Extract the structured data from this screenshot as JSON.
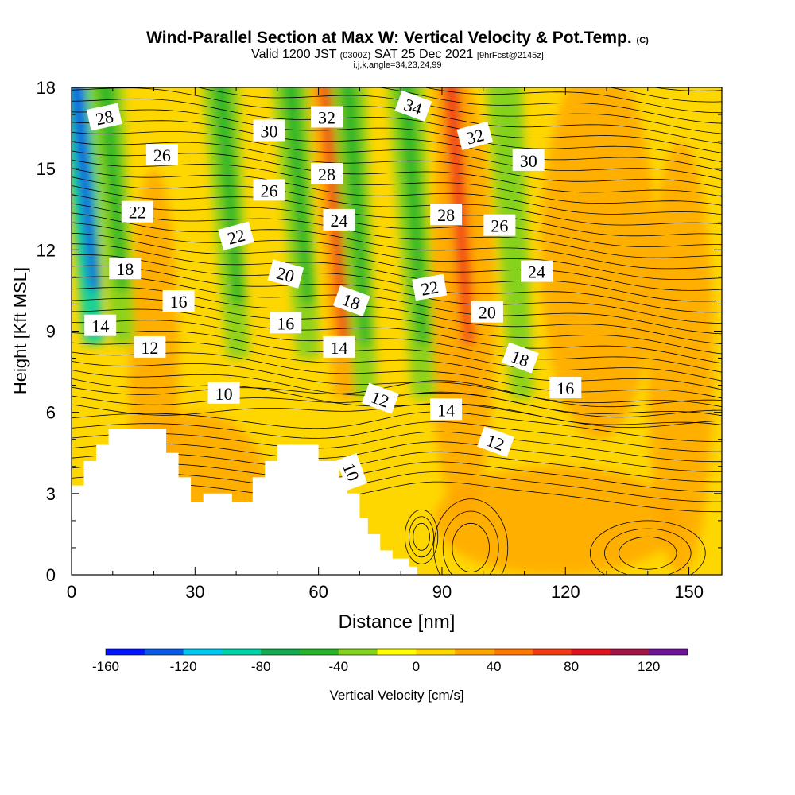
{
  "chart_data": {
    "type": "heatmap",
    "title": "Wind-Parallel Section at Max W: Vertical Velocity & Pot.Temp.",
    "title_mark": "(C)",
    "subtitle_parts": [
      "Valid 1200 JST ",
      "(0300Z)",
      " SAT 25 Dec 2021 ",
      "[9hrFcst@2145z]"
    ],
    "subtitle2": "i,j,k,angle=34,23,24,99",
    "xlabel": "Distance [nm]",
    "ylabel": "Height [Kft MSL]",
    "xlim": [
      0,
      158
    ],
    "ylim": [
      0,
      18
    ],
    "x_ticks": [
      "0",
      "30",
      "60",
      "90",
      "120",
      "150"
    ],
    "y_ticks": [
      "0",
      "3",
      "6",
      "9",
      "12",
      "15",
      "18"
    ],
    "colorbar": {
      "label": "Vertical Velocity [cm/s]",
      "tick_labels": [
        "-160",
        "-120",
        "-80",
        "-40",
        "0",
        "40",
        "80",
        "120"
      ],
      "colors": [
        "#0014ff",
        "#0a5ae6",
        "#00c8f0",
        "#00d2aa",
        "#14aa50",
        "#28b428",
        "#82d21e",
        "#ffff00",
        "#ffd700",
        "#ffa500",
        "#ff7800",
        "#f03c14",
        "#dc141e",
        "#a01446",
        "#6e1496"
      ]
    },
    "theta_contour_labels": [
      "28",
      "26",
      "22",
      "18",
      "14",
      "16",
      "12",
      "10",
      "30",
      "26",
      "22",
      "20",
      "16",
      "32",
      "28",
      "24",
      "18",
      "14",
      "34",
      "32",
      "28",
      "22",
      "12",
      "14",
      "30",
      "26",
      "24",
      "20",
      "18",
      "16",
      "12",
      "10"
    ],
    "vertical_velocity_features": [
      {
        "x": 3,
        "value": -140
      },
      {
        "x": 10,
        "value": -60
      },
      {
        "x": 38,
        "value": -55
      },
      {
        "x": 55,
        "value": -50
      },
      {
        "x": 64,
        "value": 75
      },
      {
        "x": 69,
        "value": -45
      },
      {
        "x": 83,
        "value": -50
      },
      {
        "x": 94,
        "value": 60
      },
      {
        "x": 107,
        "value": -35
      }
    ],
    "terrain": [
      [
        0,
        0
      ],
      [
        0,
        3.3
      ],
      [
        3,
        3.3
      ],
      [
        3,
        4.2
      ],
      [
        6,
        4.2
      ],
      [
        6,
        4.8
      ],
      [
        9,
        4.8
      ],
      [
        9,
        5.4
      ],
      [
        23,
        5.4
      ],
      [
        23,
        4.5
      ],
      [
        26,
        4.5
      ],
      [
        26,
        3.6
      ],
      [
        29,
        3.6
      ],
      [
        29,
        2.7
      ],
      [
        32,
        2.7
      ],
      [
        32,
        3.0
      ],
      [
        39,
        3.0
      ],
      [
        39,
        2.7
      ],
      [
        44,
        2.7
      ],
      [
        44,
        3.6
      ],
      [
        47,
        3.6
      ],
      [
        47,
        4.2
      ],
      [
        50,
        4.2
      ],
      [
        50,
        4.8
      ],
      [
        60,
        4.8
      ],
      [
        60,
        4.2
      ],
      [
        65,
        4.2
      ],
      [
        65,
        3.6
      ],
      [
        67,
        3.6
      ],
      [
        67,
        3.0
      ],
      [
        70,
        3.0
      ],
      [
        70,
        2.1
      ],
      [
        72,
        2.1
      ],
      [
        72,
        1.5
      ],
      [
        75,
        1.5
      ],
      [
        75,
        0.9
      ],
      [
        78,
        0.9
      ],
      [
        78,
        0.6
      ],
      [
        82,
        0.6
      ],
      [
        82,
        0.3
      ],
      [
        84,
        0.3
      ],
      [
        84,
        0
      ]
    ]
  }
}
